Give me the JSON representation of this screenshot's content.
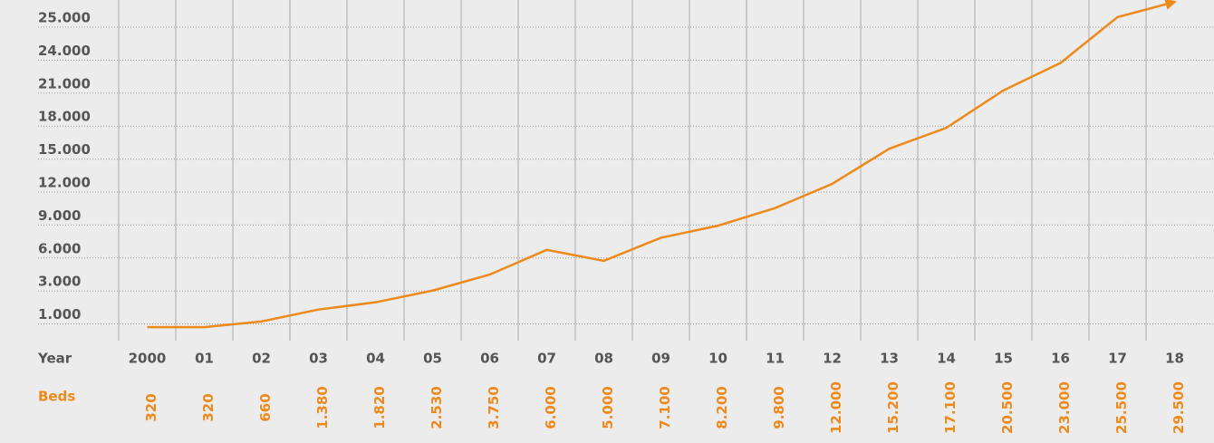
{
  "chart_data": {
    "type": "line",
    "x_label": "Year",
    "series_label": "Beds",
    "categories": [
      "2000",
      "01",
      "02",
      "03",
      "04",
      "05",
      "06",
      "07",
      "08",
      "09",
      "10",
      "11",
      "12",
      "13",
      "14",
      "15",
      "16",
      "17",
      "18"
    ],
    "series": [
      {
        "name": "Beds",
        "color": "#ee8a1c",
        "values": [
          320,
          320,
          660,
          1380,
          1820,
          2530,
          3750,
          6000,
          5000,
          7100,
          8200,
          9800,
          12000,
          15200,
          17100,
          20500,
          23000,
          25500,
          29500
        ],
        "value_labels": [
          "320",
          "320",
          "660",
          "1.380",
          "1.820",
          "2.530",
          "3.750",
          "6.000",
          "5.000",
          "7.100",
          "8.200",
          "9.800",
          "12.000",
          "15.200",
          "17.100",
          "20.500",
          "23.000",
          "25.500",
          "29.500"
        ]
      }
    ],
    "ylim": [
      0,
      30000
    ],
    "yticks": [
      {
        "value": 1000,
        "label": "1.000"
      },
      {
        "value": 3000,
        "label": "3.000"
      },
      {
        "value": 6000,
        "label": "6.000"
      },
      {
        "value": 9000,
        "label": "9.000"
      },
      {
        "value": 12000,
        "label": "12.000"
      },
      {
        "value": 15000,
        "label": "15.000"
      },
      {
        "value": 18000,
        "label": "18.000"
      },
      {
        "value": 21000,
        "label": "21.000"
      },
      {
        "value": 24000,
        "label": "24.000"
      },
      {
        "value": 25000,
        "label": "25.000"
      }
    ],
    "grid": true
  }
}
